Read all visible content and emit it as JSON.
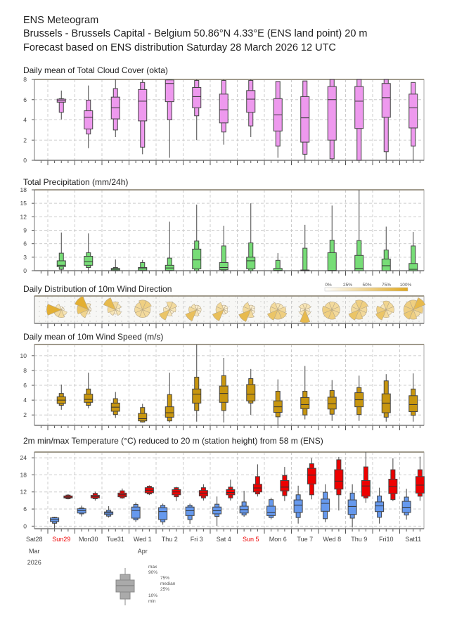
{
  "header": {
    "line1": "ENS Meteogram",
    "line2": "Brussels - Brussels Capital - Belgium 50.86°N 4.33°E (ENS land point) 20 m",
    "line3": "Forecast based on ENS distribution Saturday 28 March 2026 12 UTC"
  },
  "colors": {
    "cloud": "#ee99ee",
    "precip": "#77dd77",
    "wind": "#c8960f",
    "tmin": "#6699ee",
    "tmax": "#ee0000",
    "rose_dark": "#e0a820",
    "sunday": "#ee0000"
  },
  "chart_data": [
    {
      "type": "box",
      "id": "cloud",
      "title": "Daily mean of Total Cloud Cover (okta)",
      "ylim": [
        0,
        8
      ],
      "yticks": [
        "0",
        "2",
        "4",
        "6",
        "8"
      ],
      "stats_order": [
        "min",
        "p10",
        "p25",
        "median",
        "p75",
        "p90",
        "max"
      ],
      "values": [
        [
          4.05,
          4.75,
          5.75,
          5.9,
          6.05,
          6.1,
          6.9
        ],
        [
          1.2,
          2.6,
          3.1,
          4.25,
          4.9,
          5.95,
          7.4
        ],
        [
          2.3,
          3.0,
          4.1,
          5.2,
          6.25,
          7.1,
          8
        ],
        [
          0.6,
          1.3,
          3.9,
          5.85,
          7.0,
          7.7,
          8
        ],
        [
          0.25,
          4.0,
          5.8,
          7.6,
          7.95,
          7.95,
          8
        ],
        [
          2.0,
          4.4,
          5.2,
          6.3,
          7.2,
          7.9,
          8
        ],
        [
          1.55,
          2.8,
          3.7,
          5.0,
          6.55,
          7.9,
          8
        ],
        [
          2.3,
          3.4,
          4.75,
          6.05,
          6.9,
          7.9,
          8
        ],
        [
          0.25,
          1.4,
          2.9,
          4.5,
          6.1,
          7.8,
          7.8
        ],
        [
          0,
          0.6,
          1.8,
          4.2,
          6.3,
          7.85,
          7.85
        ],
        [
          0,
          0.15,
          2.0,
          6.0,
          7.3,
          8,
          8
        ],
        [
          0,
          0,
          3.15,
          5.85,
          7.3,
          8,
          8
        ],
        [
          0,
          0.85,
          4.25,
          6.2,
          7.6,
          8,
          8
        ],
        [
          0,
          1.4,
          3.2,
          5.2,
          6.55,
          7.7,
          7.7
        ]
      ]
    },
    {
      "type": "box",
      "id": "precip",
      "title": "Total Precipitation (mm/24h)",
      "ylim": [
        0,
        18
      ],
      "yticks": [
        "0",
        "3",
        "6",
        "9",
        "12",
        "15",
        "18"
      ],
      "values": [
        [
          0,
          0.3,
          0.9,
          1.2,
          2.2,
          3.9,
          8.5
        ],
        [
          0,
          0.7,
          1.2,
          2.0,
          3.2,
          4.0,
          8.3
        ],
        [
          0,
          0,
          0.05,
          0.3,
          0.5,
          0.7,
          2.5
        ],
        [
          0,
          0,
          0.05,
          0.4,
          0.7,
          1.8,
          2.4
        ],
        [
          0,
          0,
          0.05,
          0.6,
          1.2,
          2.8,
          10.9
        ],
        [
          0,
          0,
          0.4,
          2.4,
          4.8,
          6.6,
          14.7
        ],
        [
          0,
          0,
          0.2,
          0.7,
          1.8,
          5.5,
          10.0
        ],
        [
          0,
          0,
          0.4,
          2.2,
          3.0,
          6.2,
          15.0
        ],
        [
          0,
          0,
          0,
          0.05,
          0.5,
          2.3,
          3.9
        ],
        [
          0,
          0,
          0,
          0,
          0.15,
          5.0,
          10.2
        ],
        [
          0,
          0,
          0,
          0.05,
          4.0,
          6.8,
          14.5
        ],
        [
          0,
          0,
          0,
          0.5,
          3.4,
          6.7,
          18
        ],
        [
          0,
          0,
          0,
          1.1,
          2.6,
          4.6,
          9.8
        ],
        [
          0,
          0,
          0,
          0.3,
          1.6,
          5.5,
          8.6
        ]
      ]
    },
    {
      "type": "rose",
      "id": "winddir",
      "title": "Daily Distribution of 10m Wind Direction",
      "legend": [
        "0%",
        "25%",
        "50%",
        "75%",
        "100%"
      ],
      "sectors": [
        "N",
        "NE",
        "E",
        "SE",
        "S",
        "SW",
        "W",
        "NW"
      ],
      "values": [
        [
          0,
          0,
          0,
          0.2,
          0.3,
          0.3,
          0.7,
          0.2
        ],
        [
          0.2,
          0,
          0,
          0,
          0.1,
          0.35,
          0.5,
          0.7
        ],
        [
          0.3,
          0.2,
          0.1,
          0.2,
          0.1,
          0.2,
          0.3,
          0.6
        ],
        [
          0.4,
          0.4,
          0.3,
          0.3,
          0.3,
          0.3,
          0.3,
          0.3
        ],
        [
          0.3,
          0.3,
          0.2,
          0.1,
          0.2,
          0.5,
          0.2,
          0.1
        ],
        [
          0.1,
          0.1,
          0.1,
          0.1,
          0.2,
          0.55,
          0.3,
          0.2
        ],
        [
          0.1,
          0.1,
          0.05,
          0.1,
          0.1,
          0.55,
          0.3,
          0.3
        ],
        [
          0.1,
          0.1,
          0.05,
          0.1,
          0.3,
          0.6,
          0.3,
          0.3
        ],
        [
          0.2,
          0.2,
          0.3,
          0.4,
          0.4,
          0.5,
          0.3,
          0.3
        ],
        [
          0.2,
          0.2,
          0.1,
          0.2,
          0.6,
          0.2,
          0.1,
          0.2
        ],
        [
          0.3,
          0.3,
          0.3,
          0.3,
          0.4,
          0.4,
          0.4,
          0.3
        ],
        [
          0.4,
          0.4,
          0.3,
          0.3,
          0.4,
          0.5,
          0.3,
          0.3
        ],
        [
          0.35,
          0.3,
          0.3,
          0.2,
          0.3,
          0.5,
          0.4,
          0.2
        ],
        [
          0.4,
          0.6,
          0.4,
          0.3,
          0.4,
          0.45,
          0.4,
          0.4
        ]
      ]
    },
    {
      "type": "box",
      "id": "wind",
      "title": "Daily mean of 10m Wind Speed (m/s)",
      "ylim": [
        0.6,
        11.5
      ],
      "yticks": [
        "2",
        "4",
        "6",
        "8",
        "10"
      ],
      "values": [
        [
          2.7,
          3.3,
          3.55,
          4.0,
          4.45,
          4.9,
          6.1
        ],
        [
          2.9,
          3.3,
          3.7,
          4.1,
          4.8,
          5.5,
          7.7
        ],
        [
          1.6,
          2.05,
          2.5,
          3.05,
          3.6,
          4.2,
          5.1
        ],
        [
          1.0,
          1.05,
          1.2,
          1.5,
          2.2,
          3.0,
          3.5
        ],
        [
          1.0,
          1.2,
          1.7,
          2.3,
          3.1,
          4.75,
          7.7
        ],
        [
          1.1,
          2.6,
          3.6,
          4.8,
          5.5,
          7.1,
          11.5
        ],
        [
          1.0,
          2.6,
          3.7,
          4.9,
          5.9,
          7.3,
          9.7
        ],
        [
          2.0,
          3.6,
          3.9,
          4.8,
          6.1,
          6.9,
          8.2
        ],
        [
          0.6,
          1.75,
          2.35,
          3.1,
          3.9,
          5.2,
          6.8
        ],
        [
          1.4,
          2.0,
          2.85,
          3.4,
          4.35,
          5.2,
          8.6
        ],
        [
          1.2,
          2.1,
          2.8,
          3.5,
          4.4,
          5.3,
          6.7
        ],
        [
          1.2,
          2.05,
          3.1,
          4.05,
          5.0,
          5.7,
          7.3
        ],
        [
          1.1,
          1.7,
          2.3,
          3.6,
          4.85,
          6.6,
          7.5
        ],
        [
          1.1,
          1.95,
          2.45,
          3.4,
          4.6,
          5.5,
          7.6
        ]
      ]
    },
    {
      "type": "box",
      "id": "temp",
      "title": "2m min/max Temperature (°C) reduced to 20 m (station height) from 58 m (ENS)",
      "ylim": [
        -0.9,
        26
      ],
      "yticks": [
        "0",
        "6",
        "12",
        "18",
        "24"
      ],
      "series": [
        {
          "name": "min",
          "values": [
            [
              -0.8,
              1.0,
              1.6,
              2.3,
              2.9,
              3.1,
              3.3
            ],
            [
              3.4,
              4.3,
              4.6,
              5.4,
              6.1,
              6.4,
              7.2
            ],
            [
              3.0,
              3.5,
              4.1,
              4.6,
              5.0,
              5.6,
              7.0
            ],
            [
              1.5,
              2.2,
              2.8,
              5.5,
              6.7,
              7.6,
              8.3
            ],
            [
              0.5,
              1.5,
              2.3,
              5.1,
              6.5,
              7.3,
              7.9
            ],
            [
              0.8,
              2.3,
              3.7,
              5.4,
              6.7,
              7.3,
              7.9
            ],
            [
              0.1,
              3.4,
              4.3,
              5.4,
              6.7,
              7.7,
              10.4
            ],
            [
              3.3,
              3.9,
              4.6,
              5.8,
              7.0,
              8.5,
              12.4
            ],
            [
              2.4,
              3.0,
              3.7,
              4.9,
              7.0,
              9.3,
              10.0
            ],
            [
              0.9,
              3.0,
              4.8,
              7.4,
              9.2,
              11.0,
              14.2
            ],
            [
              1.4,
              2.6,
              5.2,
              8.0,
              9.5,
              11.9,
              14.7
            ],
            [
              -0.5,
              2.8,
              4.1,
              6.9,
              9.2,
              11.6,
              14.7
            ],
            [
              0.9,
              3.1,
              5.1,
              7.1,
              8.5,
              10.6,
              13.5
            ],
            [
              2.3,
              3.9,
              4.8,
              6.6,
              8.7,
              10.2,
              13.1
            ]
          ]
        },
        {
          "name": "max",
          "values": [
            [
              9.4,
              9.6,
              9.9,
              10.2,
              10.6,
              10.9,
              11.2
            ],
            [
              9.0,
              9.6,
              9.9,
              10.4,
              10.8,
              11.5,
              12.1
            ],
            [
              9.6,
              9.9,
              10.3,
              11.0,
              11.6,
              12.4,
              13.2
            ],
            [
              10.9,
              11.3,
              11.7,
              12.6,
              13.5,
              14.0,
              14.3
            ],
            [
              8.8,
              10.3,
              11.0,
              12.0,
              12.8,
              13.5,
              13.8
            ],
            [
              9.0,
              9.9,
              10.6,
              11.6,
              12.5,
              13.5,
              14.7
            ],
            [
              9.0,
              9.9,
              11.0,
              11.8,
              12.8,
              13.7,
              16.3
            ],
            [
              10.4,
              11.3,
              12.0,
              13.4,
              14.7,
              17.4,
              21.7
            ],
            [
              8.8,
              10.7,
              12.4,
              13.7,
              16.0,
              17.8,
              20.8
            ],
            [
              9.4,
              11.0,
              14.8,
              17.9,
              20.3,
              21.9,
              23.9
            ],
            [
              5.5,
              11.0,
              13.0,
              15.8,
              19.8,
              23.3,
              24.3
            ],
            [
              8.2,
              9.9,
              10.5,
              14.1,
              16.0,
              20.8,
              26
            ],
            [
              8.8,
              9.3,
              11.4,
              13.9,
              16.5,
              19.8,
              23.8
            ],
            [
              8.9,
              10.5,
              11.6,
              14.4,
              17.4,
              19.8,
              24.4
            ]
          ]
        }
      ]
    }
  ],
  "xaxis": {
    "days": [
      "Sat28",
      "Sun29",
      "Mon30",
      "Tue31",
      "Wed 1",
      "Thu 2",
      "Fri 3",
      "Sat 4",
      "Sun 5",
      "Mon 6",
      "Tue 7",
      "Wed 8",
      "Thu 9",
      "Fri10",
      "Sat11"
    ],
    "sundays": [
      1,
      8
    ],
    "month1": "Mar",
    "month2": "Apr",
    "year": "2026"
  },
  "legend_box": {
    "max": "max",
    "p90": "90%",
    "p75": "75%",
    "median": "median",
    "p25": "25%",
    "p10": "10%",
    "min": "min"
  }
}
